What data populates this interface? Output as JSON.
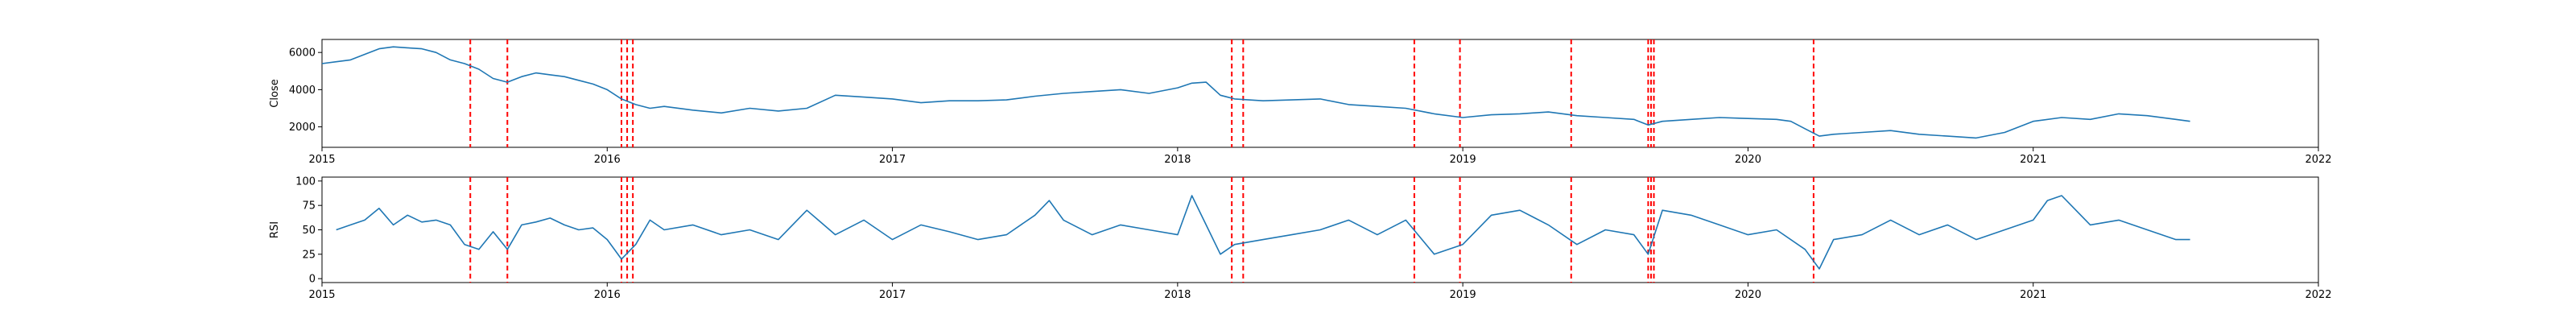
{
  "chart_data": [
    {
      "type": "line",
      "xlabel": "",
      "ylabel": "Close",
      "xlim": [
        2015,
        2022
      ],
      "ylim": [
        900,
        6700
      ],
      "x_ticks": [
        "2015",
        "2016",
        "2017",
        "2018",
        "2019",
        "2020",
        "2021",
        "2022"
      ],
      "y_ticks": [
        2000,
        4000,
        6000
      ],
      "grid": false,
      "line_color": "#1f77b4",
      "event_color": "#ff0000",
      "series": [
        {
          "x": [
            2015.0,
            2015.05,
            2015.1,
            2015.15,
            2015.2,
            2015.25,
            2015.3,
            2015.35,
            2015.4,
            2015.45,
            2015.5,
            2015.55,
            2015.6,
            2015.65,
            2015.7,
            2015.75,
            2015.8,
            2015.85,
            2015.9,
            2015.95,
            2016.0,
            2016.05,
            2016.1,
            2016.15,
            2016.2,
            2016.3,
            2016.4,
            2016.5,
            2016.6,
            2016.7,
            2016.8,
            2016.9,
            2017.0,
            2017.1,
            2017.2,
            2017.3,
            2017.4,
            2017.5,
            2017.6,
            2017.7,
            2017.8,
            2017.9,
            2018.0,
            2018.05,
            2018.1,
            2018.15,
            2018.2,
            2018.3,
            2018.4,
            2018.5,
            2018.6,
            2018.7,
            2018.8,
            2018.9,
            2019.0,
            2019.1,
            2019.2,
            2019.3,
            2019.4,
            2019.5,
            2019.6,
            2019.65,
            2019.7,
            2019.8,
            2019.9,
            2020.0,
            2020.1,
            2020.15,
            2020.2,
            2020.25,
            2020.3,
            2020.4,
            2020.5,
            2020.6,
            2020.7,
            2020.8,
            2020.9,
            2021.0,
            2021.1,
            2021.2,
            2021.3,
            2021.4,
            2021.5,
            2021.55
          ],
          "y": [
            5400,
            5500,
            5600,
            5900,
            6200,
            6300,
            6250,
            6200,
            6000,
            5600,
            5400,
            5100,
            4600,
            4400,
            4700,
            4900,
            4800,
            4700,
            4500,
            4300,
            4000,
            3500,
            3200,
            3000,
            3100,
            2900,
            2750,
            3000,
            2850,
            3000,
            3700,
            3600,
            3500,
            3300,
            3400,
            3400,
            3450,
            3650,
            3800,
            3900,
            4000,
            3800,
            4100,
            4350,
            4400,
            3700,
            3500,
            3400,
            3450,
            3500,
            3200,
            3100,
            3000,
            2700,
            2500,
            2650,
            2700,
            2800,
            2600,
            2500,
            2400,
            2100,
            2300,
            2400,
            2500,
            2450,
            2400,
            2300,
            1900,
            1500,
            1600,
            1700,
            1800,
            1600,
            1500,
            1400,
            1700,
            2300,
            2500,
            2400,
            2700,
            2600,
            2400,
            2300
          ]
        }
      ],
      "events": [
        2015.52,
        2015.65,
        2016.05,
        2016.07,
        2016.09,
        2018.19,
        2018.23,
        2018.83,
        2018.99,
        2019.38,
        2019.65,
        2019.66,
        2019.67,
        2020.23
      ]
    },
    {
      "type": "line",
      "xlabel": "",
      "ylabel": "RSI",
      "xlim": [
        2015,
        2022
      ],
      "ylim": [
        -4,
        104
      ],
      "x_ticks": [
        "2015",
        "2016",
        "2017",
        "2018",
        "2019",
        "2020",
        "2021",
        "2022"
      ],
      "y_ticks": [
        0,
        25,
        50,
        75,
        100
      ],
      "grid": false,
      "line_color": "#1f77b4",
      "event_color": "#ff0000",
      "series": [
        {
          "x": [
            2015.05,
            2015.1,
            2015.15,
            2015.2,
            2015.25,
            2015.3,
            2015.35,
            2015.4,
            2015.45,
            2015.5,
            2015.55,
            2015.6,
            2015.65,
            2015.7,
            2015.75,
            2015.8,
            2015.85,
            2015.9,
            2015.95,
            2016.0,
            2016.05,
            2016.1,
            2016.15,
            2016.2,
            2016.3,
            2016.4,
            2016.5,
            2016.6,
            2016.7,
            2016.8,
            2016.9,
            2017.0,
            2017.1,
            2017.2,
            2017.3,
            2017.4,
            2017.5,
            2017.55,
            2017.6,
            2017.7,
            2017.8,
            2017.9,
            2018.0,
            2018.05,
            2018.1,
            2018.15,
            2018.2,
            2018.3,
            2018.4,
            2018.5,
            2018.6,
            2018.7,
            2018.8,
            2018.9,
            2019.0,
            2019.1,
            2019.2,
            2019.3,
            2019.4,
            2019.5,
            2019.6,
            2019.65,
            2019.7,
            2019.8,
            2019.9,
            2020.0,
            2020.1,
            2020.2,
            2020.25,
            2020.3,
            2020.4,
            2020.5,
            2020.6,
            2020.7,
            2020.8,
            2020.9,
            2021.0,
            2021.05,
            2021.1,
            2021.2,
            2021.3,
            2021.4,
            2021.5,
            2021.55
          ],
          "y": [
            50,
            55,
            60,
            72,
            55,
            65,
            58,
            60,
            55,
            35,
            30,
            48,
            30,
            55,
            58,
            62,
            55,
            50,
            52,
            40,
            20,
            35,
            60,
            50,
            55,
            45,
            50,
            40,
            70,
            45,
            60,
            40,
            55,
            48,
            40,
            45,
            65,
            80,
            60,
            45,
            55,
            50,
            45,
            85,
            55,
            25,
            35,
            40,
            45,
            50,
            60,
            45,
            60,
            25,
            35,
            65,
            70,
            55,
            35,
            50,
            45,
            25,
            70,
            65,
            55,
            45,
            50,
            30,
            10,
            40,
            45,
            60,
            45,
            55,
            40,
            50,
            60,
            80,
            85,
            55,
            60,
            50,
            40,
            40
          ]
        }
      ],
      "events": [
        2015.52,
        2015.65,
        2016.05,
        2016.07,
        2016.09,
        2018.19,
        2018.23,
        2018.83,
        2018.99,
        2019.38,
        2019.65,
        2019.66,
        2019.67,
        2020.23
      ]
    }
  ]
}
